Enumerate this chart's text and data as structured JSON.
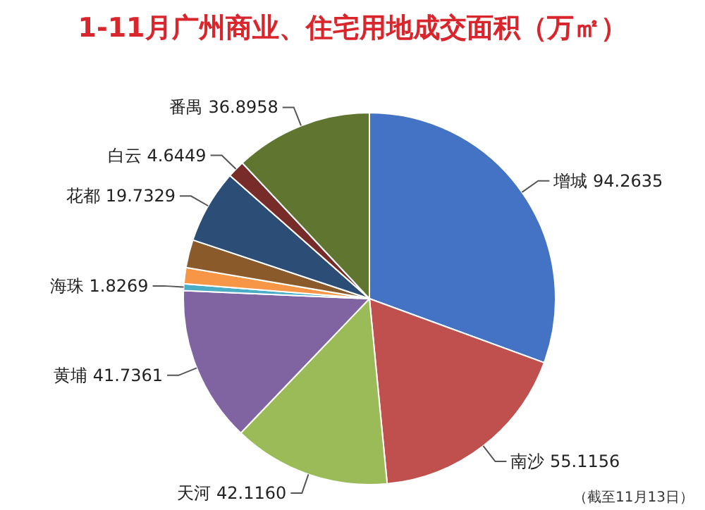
{
  "chart_data": {
    "type": "pie",
    "title": "1-11月广州商业、住宅用地成交面积（万㎡）",
    "categories": [
      "增城",
      "南沙",
      "天河",
      "黄埔",
      "海珠",
      null,
      null,
      "花都",
      "白云",
      "番禺"
    ],
    "values": [
      94.2635,
      55.1156,
      42.116,
      41.7361,
      1.8269,
      4.3,
      7.5,
      19.7329,
      4.6449,
      36.8958
    ],
    "value_labels": [
      "94.2635",
      "55.1156",
      "42.1160",
      "41.7361",
      "1.8269",
      null,
      null,
      "19.7329",
      "4.6449",
      "36.8958"
    ],
    "colors": [
      "#4472c4",
      "#c0504d",
      "#9bbb59",
      "#8064a2",
      "#4bacc6",
      "#f79646",
      "#8b5a2b",
      "#2c4d75",
      "#772c2a",
      "#5f7530"
    ],
    "annotations": [
      "（截至11月13日）"
    ]
  }
}
